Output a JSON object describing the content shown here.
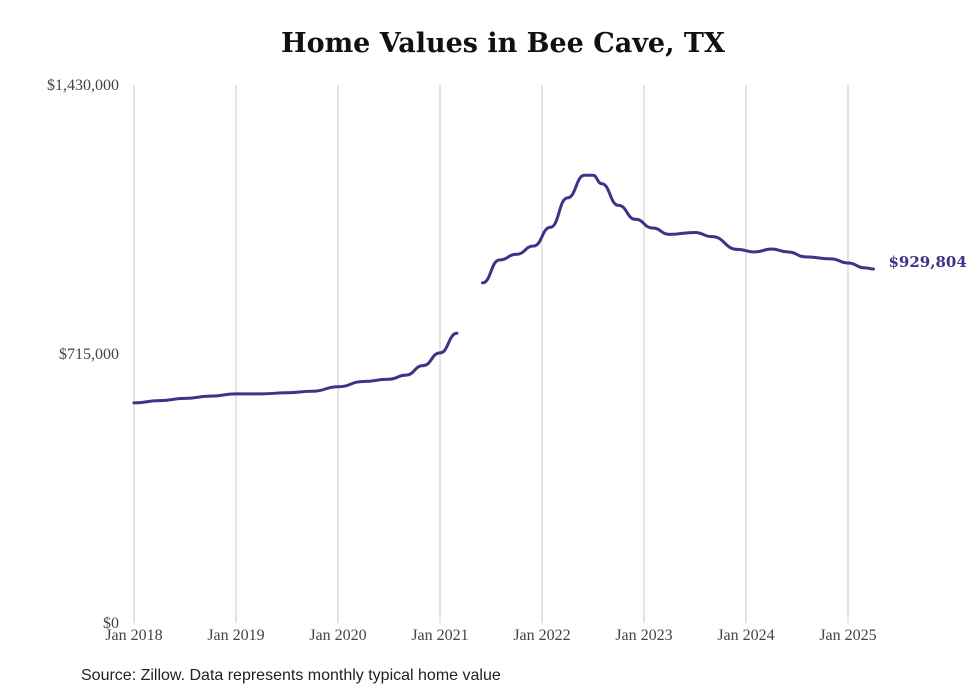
{
  "title": "Home Values in Bee Cave, TX",
  "source": "Source: Zillow. Data represents monthly typical home value",
  "colors": {
    "line": "#3b3488",
    "grid": "#c8c8c8",
    "text": "#444444"
  },
  "chart_data": {
    "type": "line",
    "title": "Home Values in Bee Cave, TX",
    "xlabel": "",
    "ylabel": "",
    "ylim": [
      0,
      1430000
    ],
    "yticks": [
      {
        "value": 0,
        "label": "$0"
      },
      {
        "value": 715000,
        "label": "$715,000"
      },
      {
        "value": 1430000,
        "label": "$1,430,000"
      }
    ],
    "xticks": [
      {
        "value": "2018-01",
        "label": "Jan 2018"
      },
      {
        "value": "2019-01",
        "label": "Jan 2019"
      },
      {
        "value": "2020-01",
        "label": "Jan 2020"
      },
      {
        "value": "2021-01",
        "label": "Jan 2021"
      },
      {
        "value": "2022-01",
        "label": "Jan 2022"
      },
      {
        "value": "2023-01",
        "label": "Jan 2023"
      },
      {
        "value": "2024-01",
        "label": "Jan 2024"
      },
      {
        "value": "2025-01",
        "label": "Jan 2025"
      }
    ],
    "grid": "vertical",
    "end_label": "$929,804",
    "series": [
      {
        "segments": [
          [
            {
              "x": "2018-01",
              "y": 585000
            },
            {
              "x": "2018-04",
              "y": 591000
            },
            {
              "x": "2018-07",
              "y": 597000
            },
            {
              "x": "2018-10",
              "y": 603000
            },
            {
              "x": "2019-01",
              "y": 609000
            },
            {
              "x": "2019-04",
              "y": 609000
            },
            {
              "x": "2019-07",
              "y": 612000
            },
            {
              "x": "2019-10",
              "y": 616000
            },
            {
              "x": "2020-01",
              "y": 628000
            },
            {
              "x": "2020-04",
              "y": 642000
            },
            {
              "x": "2020-07",
              "y": 648000
            },
            {
              "x": "2020-09",
              "y": 659000
            },
            {
              "x": "2020-11",
              "y": 684000
            },
            {
              "x": "2021-01",
              "y": 718000
            },
            {
              "x": "2021-03",
              "y": 770000
            }
          ],
          [
            {
              "x": "2021-06",
              "y": 904000
            },
            {
              "x": "2021-08",
              "y": 965000
            },
            {
              "x": "2021-10",
              "y": 980000
            },
            {
              "x": "2021-12",
              "y": 1002000
            },
            {
              "x": "2022-02",
              "y": 1052000
            },
            {
              "x": "2022-04",
              "y": 1130000
            },
            {
              "x": "2022-06",
              "y": 1190000
            },
            {
              "x": "2022-07",
              "y": 1190000
            },
            {
              "x": "2022-08",
              "y": 1168000
            },
            {
              "x": "2022-10",
              "y": 1110000
            },
            {
              "x": "2022-12",
              "y": 1073000
            },
            {
              "x": "2023-02",
              "y": 1050000
            },
            {
              "x": "2023-04",
              "y": 1033000
            },
            {
              "x": "2023-07",
              "y": 1038000
            },
            {
              "x": "2023-09",
              "y": 1027000
            },
            {
              "x": "2023-12",
              "y": 993000
            },
            {
              "x": "2024-02",
              "y": 986000
            },
            {
              "x": "2024-04",
              "y": 994000
            },
            {
              "x": "2024-06",
              "y": 986000
            },
            {
              "x": "2024-08",
              "y": 973000
            },
            {
              "x": "2024-11",
              "y": 968000
            },
            {
              "x": "2025-01",
              "y": 957000
            },
            {
              "x": "2025-03",
              "y": 944000
            },
            {
              "x": "2025-04",
              "y": 941000
            }
          ]
        ]
      }
    ]
  }
}
